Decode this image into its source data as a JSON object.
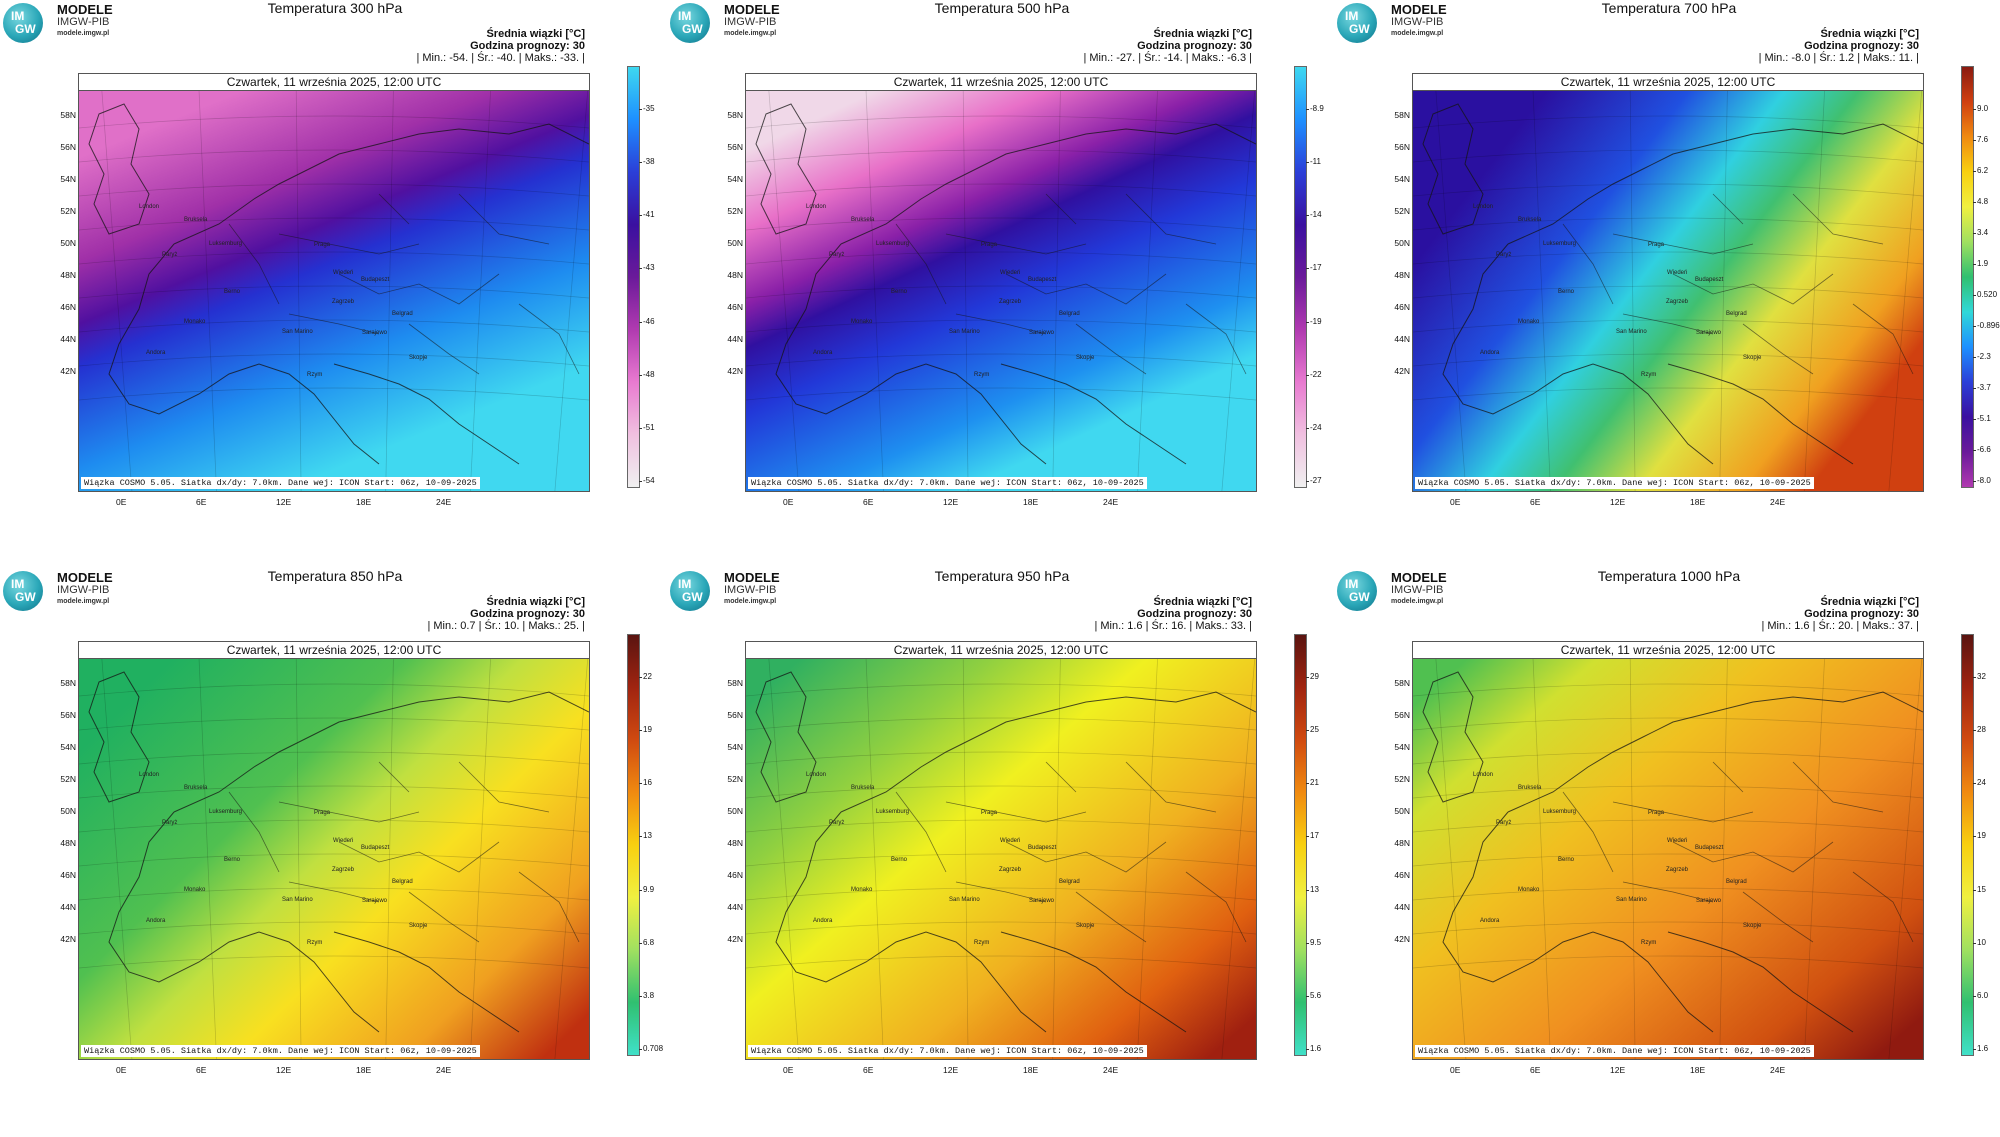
{
  "brand": {
    "line1": "MODELE",
    "line2": "IMGW-PIB",
    "url": "modele.imgw.pl",
    "logo_top": "IM",
    "logo_bottom": "GW"
  },
  "common": {
    "quantity": "Średnia wiązki [°C]",
    "forecast_hour": "Godzina prognozy: 30",
    "date": "Czwartek, 11 września 2025, 12:00 UTC",
    "footer": "Wiązka COSMO 5.05. Siatka dx/dy: 7.0km. Dane wej: ICON Start: 06z, 10-09-2025",
    "lat_labels": [
      "58N",
      "56N",
      "54N",
      "52N",
      "50N",
      "48N",
      "46N",
      "44N",
      "42N"
    ],
    "lon_labels": [
      "0E",
      "6E",
      "12E",
      "18E",
      "24E"
    ],
    "cities": [
      "London",
      "Bruksela",
      "Paryż",
      "Luksemburg",
      "Praga",
      "Wiedeń",
      "Budapeszt",
      "Berno",
      "Zagrzeb",
      "Belgrad",
      "Monako",
      "San Marino",
      "Sarajewo",
      "Andora",
      "Skopje",
      "Rzym"
    ]
  },
  "panels": [
    {
      "title": "Temperatura 300 hPa",
      "stats": "| Min.:   -54. | Śr.:   -40. | Maks.:   -33. |",
      "colorbar": [
        "-35",
        "-38",
        "-41",
        "-43",
        "-46",
        "-48",
        "-51",
        "-54"
      ],
      "palette": [
        "#3ed8f0",
        "#1e90ff",
        "#2b3fd8",
        "#3a10a0",
        "#6a1a9a",
        "#b03ab0",
        "#e87ad0",
        "#f0c0e0",
        "#f0f0f0"
      ]
    },
    {
      "title": "Temperatura 500 hPa",
      "stats": "| Min.:   -27. | Śr.:   -14. | Maks.:   -6.3 |",
      "colorbar": [
        "-8.9",
        "-11",
        "-14",
        "-17",
        "-19",
        "-22",
        "-24",
        "-27"
      ],
      "palette": [
        "#3ed8f0",
        "#1e90ff",
        "#2b3fd8",
        "#3a10a0",
        "#6a1a9a",
        "#b03ab0",
        "#e87ad0",
        "#f0c0e0",
        "#f0f0f0"
      ]
    },
    {
      "title": "Temperatura 700 hPa",
      "stats": "| Min.:   -8.0 | Śr.:   1.2 | Maks.:   11. |",
      "colorbar": [
        "9.0",
        "7.6",
        "6.2",
        "4.8",
        "3.4",
        "1.9",
        "0.520",
        "-0.896",
        "-2.3",
        "-3.7",
        "-5.1",
        "-6.6",
        "-8.0"
      ],
      "palette": [
        "#8a1a10",
        "#d04010",
        "#f08a10",
        "#f8d010",
        "#f0f040",
        "#a0e060",
        "#30c070",
        "#30d8d8",
        "#1e90ff",
        "#2b3fd8",
        "#3a10a0",
        "#6a1a9a",
        "#b03ab0"
      ]
    },
    {
      "title": "Temperatura 850 hPa",
      "stats": "| Min.:   0.7 | Śr.:   10. | Maks.:   25. |",
      "colorbar": [
        "22",
        "19",
        "16",
        "13",
        "9.9",
        "6.8",
        "3.8",
        "0.708"
      ],
      "palette": [
        "#5a1410",
        "#a02410",
        "#d04a10",
        "#f08a10",
        "#f8d010",
        "#f0f040",
        "#a0e060",
        "#30c070",
        "#40e0c8"
      ]
    },
    {
      "title": "Temperatura 950 hPa",
      "stats": "| Min.:   1.6 | Śr.:   16. | Maks.:   33. |",
      "colorbar": [
        "29",
        "25",
        "21",
        "17",
        "13",
        "9.5",
        "5.6",
        "1.6"
      ],
      "palette": [
        "#5a1410",
        "#a02410",
        "#d04a10",
        "#f08a10",
        "#f8d010",
        "#f0f040",
        "#a0e060",
        "#30c070",
        "#40e0c8"
      ]
    },
    {
      "title": "Temperatura 1000 hPa",
      "stats": "| Min.:   1.6 | Śr.:   20. | Maks.:   37. |",
      "colorbar": [
        "32",
        "28",
        "24",
        "19",
        "15",
        "10",
        "6.0",
        "1.6"
      ],
      "palette": [
        "#5a1410",
        "#a02410",
        "#d04a10",
        "#f08a10",
        "#f8d010",
        "#f0f040",
        "#a0e060",
        "#30c070",
        "#40e0c8"
      ]
    }
  ]
}
